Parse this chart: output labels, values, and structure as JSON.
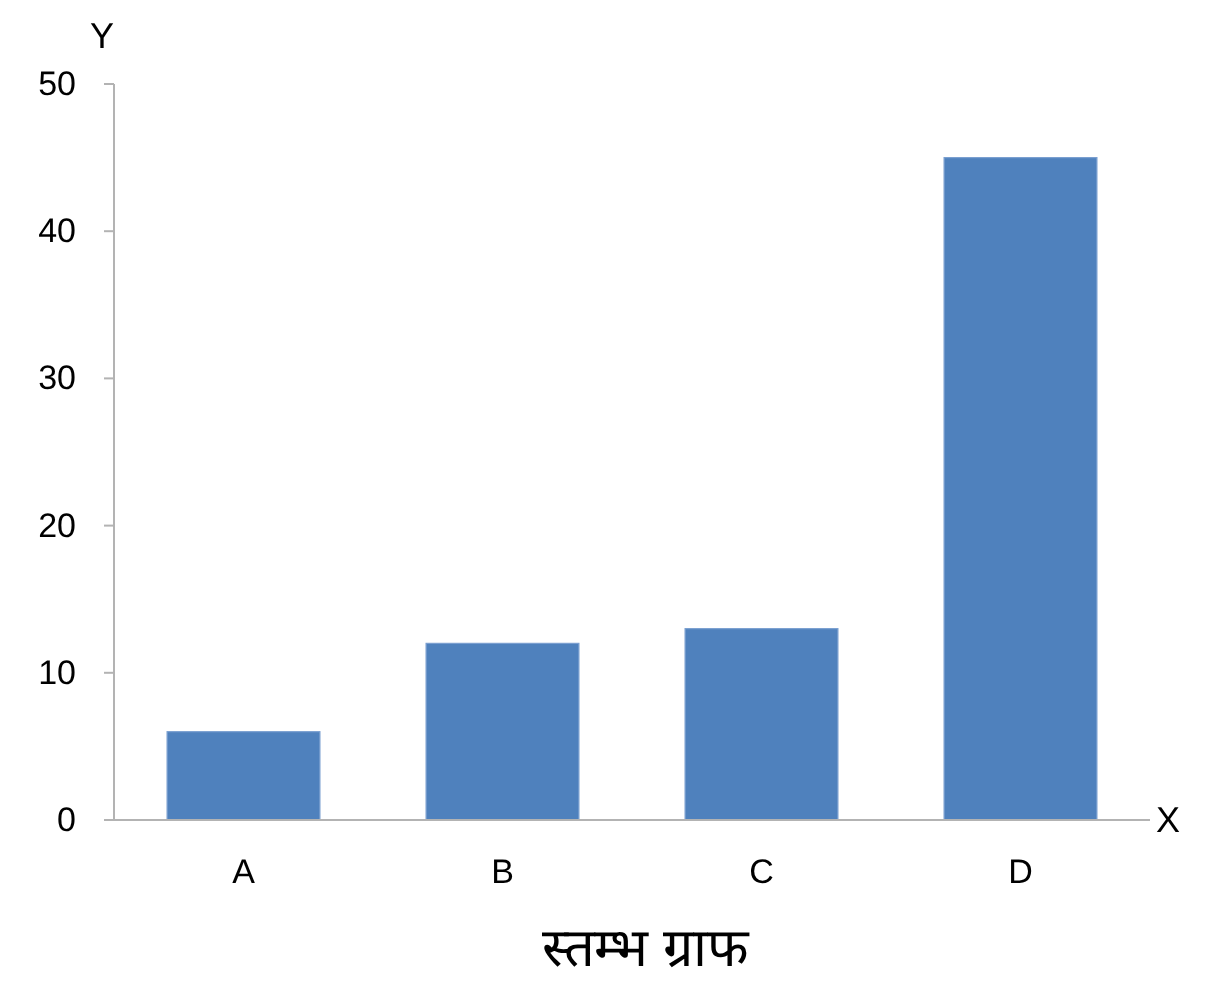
{
  "chart_data": {
    "type": "bar",
    "title": "स्तम्भ ग्राफ",
    "xlabel": "X",
    "ylabel": "Y",
    "categories": [
      "A",
      "B",
      "C",
      "D"
    ],
    "values": [
      6,
      12,
      13,
      45
    ],
    "color": "#4f81bd",
    "ylim": [
      0,
      50
    ],
    "yticks": [
      0,
      10,
      20,
      30,
      40,
      50
    ]
  }
}
